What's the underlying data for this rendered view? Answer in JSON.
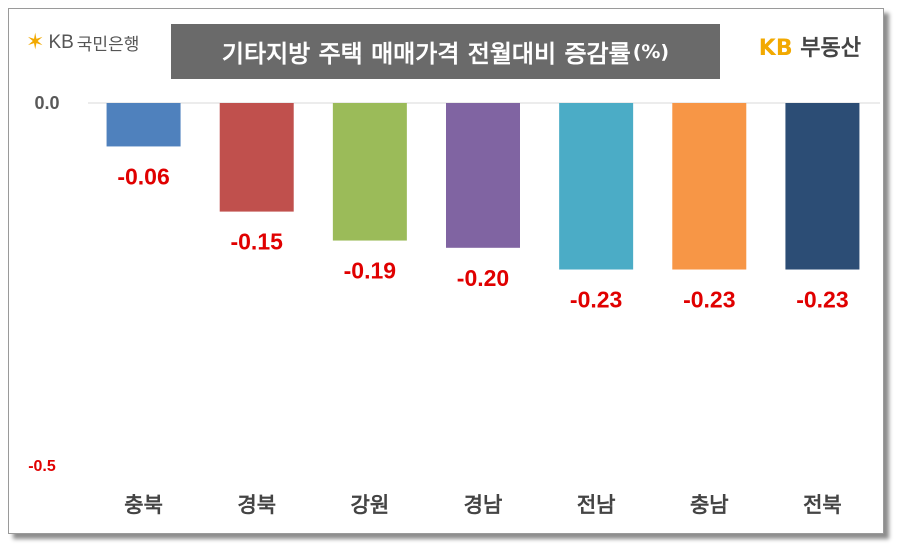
{
  "header": {
    "logo_text": "KB",
    "logo_bank": "국민은행",
    "title": "기타지방 주택 매매가격 전월대비 증감률",
    "title_unit": "(%)",
    "brand_prefix": "KB",
    "brand_suffix": "부동산"
  },
  "colors": {
    "title_bg": "#6a6a6a",
    "brand": "#f2a900",
    "label_red": "#e00000"
  },
  "icons": {
    "logo": "kb-star-icon"
  },
  "chart_data": {
    "type": "bar",
    "title": "기타지방 주택 매매가격 전월대비 증감률(%)",
    "xlabel": "",
    "ylabel": "",
    "ylim": [
      -0.5,
      0.0
    ],
    "y_ticks": [
      "0.0",
      "-0.5"
    ],
    "categories": [
      "충북",
      "경북",
      "강원",
      "경남",
      "전남",
      "충남",
      "전북"
    ],
    "values": [
      -0.06,
      -0.15,
      -0.19,
      -0.2,
      -0.23,
      -0.23,
      -0.23
    ],
    "value_labels": [
      "-0.06",
      "-0.15",
      "-0.19",
      "-0.20",
      "-0.23",
      "-0.23",
      "-0.23"
    ],
    "bar_colors": [
      "#4f81bd",
      "#c0504d",
      "#9bbb59",
      "#8064a2",
      "#4bacc6",
      "#f79646",
      "#2c4d75"
    ],
    "grid": false,
    "legend": "none"
  }
}
